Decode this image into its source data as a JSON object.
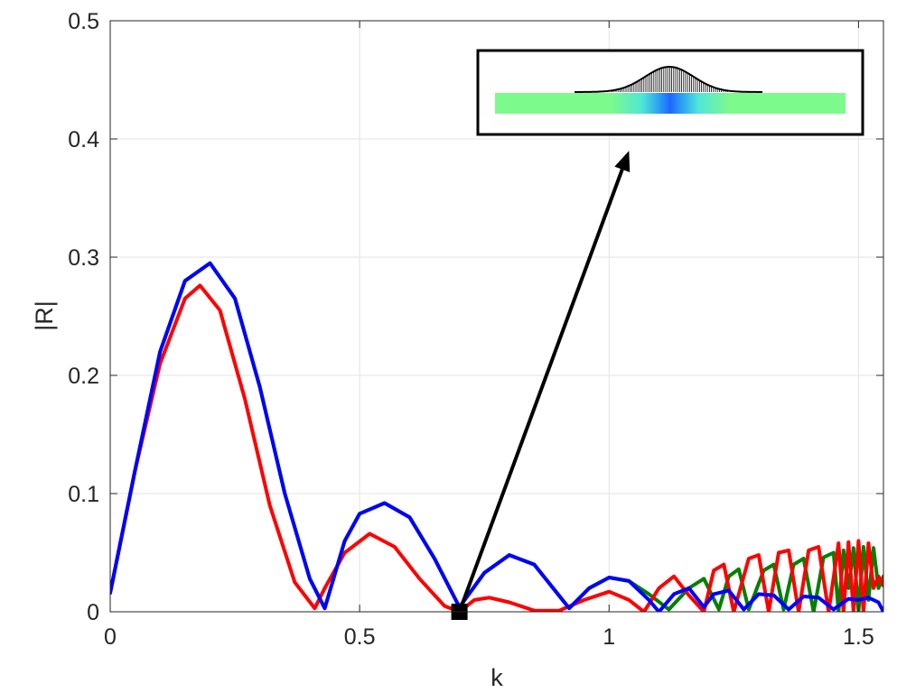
{
  "chart_data": {
    "type": "line",
    "xlabel": "k",
    "ylabel": "|R|",
    "xlim": [
      0,
      1.55
    ],
    "ylim": [
      0,
      0.5
    ],
    "xticks": [
      0,
      0.5,
      1,
      1.5
    ],
    "xtick_labels": [
      "0",
      "0.5",
      "1",
      "1.5"
    ],
    "yticks": [
      0,
      0.1,
      0.2,
      0.3,
      0.4,
      0.5
    ],
    "ytick_labels": [
      "0",
      "0.1",
      "0.2",
      "0.3",
      "0.4",
      "0.5"
    ],
    "grid": true,
    "series": [
      {
        "color": "#008000",
        "x": [
          0.0,
          0.05,
          0.1,
          0.15,
          0.2,
          0.25,
          0.3,
          0.35,
          0.4,
          0.43,
          0.47,
          0.5,
          0.55,
          0.6,
          0.65,
          0.7,
          0.75,
          0.8,
          0.85,
          0.92,
          0.96,
          1.0,
          1.04,
          1.08,
          1.12,
          1.16,
          1.19,
          1.22,
          1.24,
          1.26,
          1.28,
          1.31,
          1.33,
          1.35,
          1.37,
          1.39,
          1.41,
          1.43,
          1.45,
          1.46,
          1.47,
          1.48,
          1.49,
          1.5,
          1.51,
          1.52,
          1.53,
          1.54,
          1.55
        ],
        "y": [
          0.016,
          0.12,
          0.22,
          0.28,
          0.295,
          0.265,
          0.19,
          0.1,
          0.028,
          0.003,
          0.06,
          0.083,
          0.092,
          0.08,
          0.045,
          0.004,
          0.033,
          0.048,
          0.04,
          0.003,
          0.02,
          0.029,
          0.026,
          0.015,
          0.002,
          0.02,
          0.028,
          0.002,
          0.03,
          0.036,
          0.002,
          0.035,
          0.04,
          0.002,
          0.04,
          0.045,
          0.0,
          0.046,
          0.05,
          0.0,
          0.052,
          0.02,
          0.054,
          0.0,
          0.055,
          0.01,
          0.054,
          0.02,
          0.03
        ]
      },
      {
        "color": "#ff0000",
        "x": [
          0.0,
          0.05,
          0.1,
          0.15,
          0.18,
          0.22,
          0.27,
          0.32,
          0.37,
          0.41,
          0.43,
          0.47,
          0.52,
          0.57,
          0.62,
          0.67,
          0.7,
          0.73,
          0.76,
          0.8,
          0.85,
          0.9,
          0.95,
          1.0,
          1.04,
          1.07,
          1.1,
          1.13,
          1.16,
          1.19,
          1.21,
          1.23,
          1.25,
          1.28,
          1.3,
          1.32,
          1.34,
          1.36,
          1.38,
          1.4,
          1.42,
          1.44,
          1.46,
          1.47,
          1.48,
          1.49,
          1.5,
          1.51,
          1.52,
          1.53,
          1.54,
          1.55
        ],
        "y": [
          0.016,
          0.12,
          0.21,
          0.265,
          0.276,
          0.255,
          0.18,
          0.09,
          0.025,
          0.003,
          0.02,
          0.05,
          0.066,
          0.055,
          0.028,
          0.005,
          0.0,
          0.01,
          0.012,
          0.008,
          0.001,
          0.001,
          0.01,
          0.017,
          0.01,
          0.0,
          0.02,
          0.03,
          0.014,
          0.0,
          0.035,
          0.04,
          0.0,
          0.045,
          0.048,
          0.0,
          0.05,
          0.052,
          0.0,
          0.052,
          0.055,
          0.0,
          0.058,
          0.0,
          0.059,
          0.0,
          0.06,
          0.0,
          0.058,
          0.02,
          0.03,
          0.022
        ]
      },
      {
        "color": "#0000ff",
        "x": [
          0.0,
          0.05,
          0.1,
          0.15,
          0.2,
          0.25,
          0.3,
          0.35,
          0.4,
          0.43,
          0.47,
          0.5,
          0.55,
          0.6,
          0.65,
          0.7,
          0.75,
          0.8,
          0.85,
          0.92,
          0.96,
          1.0,
          1.04,
          1.08,
          1.1,
          1.13,
          1.16,
          1.19,
          1.21,
          1.24,
          1.27,
          1.3,
          1.33,
          1.36,
          1.39,
          1.42,
          1.45,
          1.48,
          1.5,
          1.52,
          1.54,
          1.55
        ],
        "y": [
          0.016,
          0.12,
          0.22,
          0.28,
          0.295,
          0.265,
          0.19,
          0.1,
          0.028,
          0.003,
          0.06,
          0.083,
          0.092,
          0.08,
          0.045,
          0.004,
          0.033,
          0.048,
          0.04,
          0.003,
          0.02,
          0.029,
          0.026,
          0.01,
          0.0,
          0.015,
          0.02,
          0.004,
          0.015,
          0.018,
          0.002,
          0.015,
          0.014,
          0.002,
          0.013,
          0.012,
          0.002,
          0.011,
          0.01,
          0.012,
          0.008,
          0.0
        ]
      }
    ],
    "annotations": [
      {
        "type": "marker",
        "shape": "square",
        "color": "#000000",
        "x": 0.7,
        "y": 0.0
      },
      {
        "type": "arrow",
        "color": "#000000",
        "from": [
          0.7,
          0.0
        ],
        "to": [
          1.04,
          0.39
        ]
      },
      {
        "type": "inset",
        "description_colors": {
          "bar": "#7dfa8c",
          "highlight": "#1f66ff",
          "outline": "#000000"
        }
      }
    ]
  }
}
